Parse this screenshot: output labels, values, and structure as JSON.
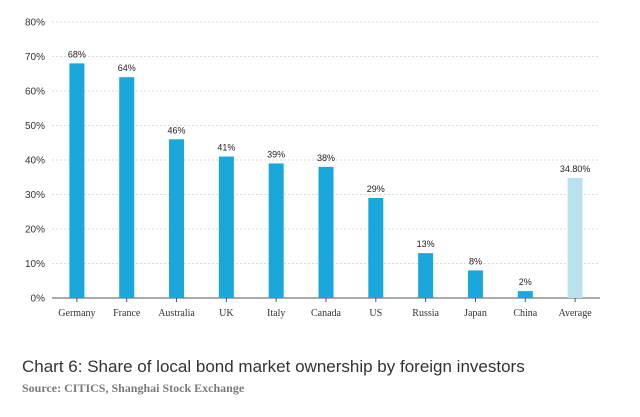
{
  "chart_data": {
    "type": "bar",
    "categories": [
      "Germany",
      "France",
      "Australia",
      "UK",
      "Italy",
      "Canada",
      "US",
      "Russia",
      "Japan",
      "China",
      "Average"
    ],
    "values": [
      68,
      64,
      46,
      41,
      39,
      38,
      29,
      13,
      8,
      2,
      34.8
    ],
    "data_labels": [
      "68%",
      "64%",
      "46%",
      "41%",
      "39%",
      "38%",
      "29%",
      "13%",
      "8%",
      "2%",
      "34.80%"
    ],
    "yticks": [
      "0%",
      "10%",
      "20%",
      "30%",
      "40%",
      "50%",
      "60%",
      "70%",
      "80%"
    ],
    "ylim": [
      0,
      80
    ],
    "grid": "horizontal",
    "bar_color": "#1aa7dc",
    "highlight_color": "#b9e2ee",
    "highlight_category": "Average",
    "title": "Chart 6: Share of local bond market ownership by foreign investors",
    "source": "Source: CITICS, Shanghai Stock Exchange"
  }
}
